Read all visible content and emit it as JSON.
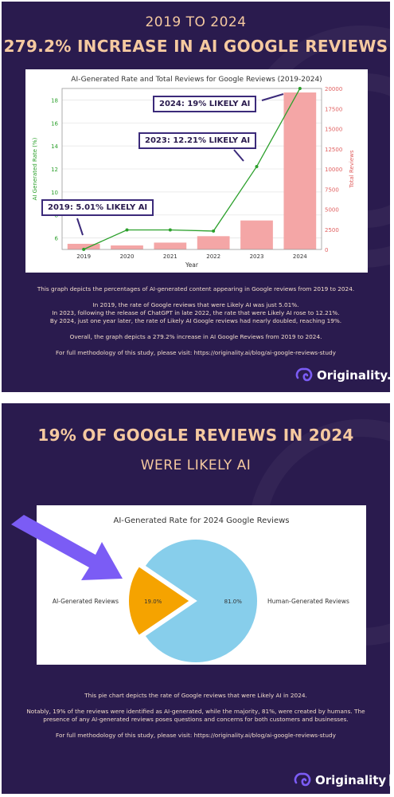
{
  "panel1": {
    "heading_top": "2019 TO 2024",
    "heading_main": "279.2% INCREASE IN AI GOOGLE REVIEWS",
    "callouts": [
      "2019: 5.01% LIKELY AI",
      "2023: 12.21% LIKELY AI",
      "2024: 19% LIKELY AI"
    ],
    "description": [
      "This graph depicts the percentages of AI-generated content appearing in Google reviews from 2019 to 2024.",
      "",
      "In 2019, the rate of Google reviews that were Likely AI was just 5.01%.",
      "In 2023, following the release of ChatGPT in late 2022, the rate that were Likely AI rose to 12.21%.",
      "By 2024, just one year later, the rate of Likely AI Google reviews had nearly doubled, reaching 19%.",
      "",
      "Overall, the graph depicts a 279.2% increase in AI Google Reviews from 2019 to 2024.",
      "",
      "For full methodology of this study, please visit: https://originality.ai/blog/ai-google-reviews-study"
    ],
    "brand": "Originality.ai"
  },
  "panel2": {
    "heading_main": "19% OF GOOGLE REVIEWS IN 2024",
    "heading_sub": "WERE LIKELY AI",
    "description": [
      "This pie chart depicts the rate of Google reviews that were Likely AI in 2024.",
      "",
      "Notably, 19% of the reviews were identified as AI-generated, while the majority, 81%, were created by humans. The presence of any AI-generated reviews poses questions and concerns for both customers and businesses.",
      "",
      "For full methodology of this study, please visit: https://originality.ai/blog/ai-google-reviews-study"
    ],
    "brand": "Originality"
  },
  "colors": {
    "background": "#2a1b4e",
    "heading": "#f5c9a0",
    "line": "#2ca02c",
    "bars": "#f4a6a6",
    "pie_ai": "#f5a300",
    "pie_human": "#87ceeb",
    "arrow": "#7b5cf5"
  },
  "chart_data": [
    {
      "type": "bar+line",
      "title": "AI-Generated Rate and Total Reviews for Google Reviews (2019-2024)",
      "xlabel": "Year",
      "ylabel_left": "AI Generated Rate (%)",
      "ylabel_right": "Total Reviews",
      "categories": [
        "2019",
        "2020",
        "2021",
        "2022",
        "2023",
        "2024"
      ],
      "series": [
        {
          "axis": "left",
          "kind": "line",
          "values": [
            5.01,
            6.7,
            6.7,
            6.6,
            12.21,
            19.0
          ]
        },
        {
          "axis": "right",
          "kind": "bar",
          "values": [
            700,
            500,
            850,
            1650,
            3600,
            19500
          ]
        }
      ],
      "ylim_left": [
        5,
        19
      ],
      "yticks_left": [
        6,
        8,
        10,
        12,
        14,
        16,
        18
      ],
      "ylim_right": [
        0,
        20000
      ],
      "yticks_right": [
        0,
        2500,
        5000,
        7500,
        10000,
        12500,
        15000,
        17500,
        20000
      ],
      "grid": true
    },
    {
      "type": "pie",
      "title": "AI-Generated Rate for 2024 Google Reviews",
      "slices": [
        {
          "label": "AI-Generated Reviews",
          "value": 19.0,
          "pct_label": "19.0%"
        },
        {
          "label": "Human-Generated Reviews",
          "value": 81.0,
          "pct_label": "81.0%"
        }
      ]
    }
  ]
}
